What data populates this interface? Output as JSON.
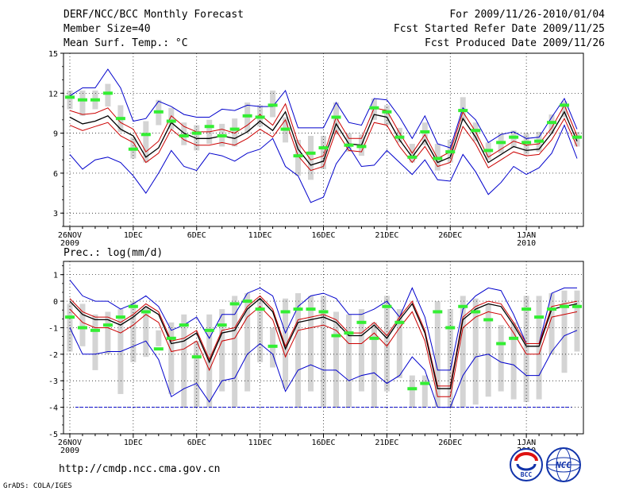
{
  "header": {
    "title": "DERF/NCC/BCC Monthly Forecast",
    "member_size": "Member Size=40",
    "variable": "Mean Surf. Temp.: °C",
    "period": "For 2009/11/26-2010/01/04",
    "started": "Fcst Started Refer Date 2009/11/25",
    "produced": "Fcst Produced Date 2009/11/26"
  },
  "footer": {
    "url": "http://cmdp.ncc.cma.gov.cn",
    "credit": "GrADS: COLA/IGES"
  },
  "logos": {
    "bcc": "BCC",
    "ncc": "NCC"
  },
  "colors": {
    "envelope": "#0000cc",
    "spread": "#cc0000",
    "mean": "#000000",
    "bar": "#d4d4d4",
    "obs": "#33ee33",
    "grid": "#000000"
  },
  "chart_data": [
    {
      "type": "line",
      "title": "Mean Surf. Temp.: °C",
      "x_tick_labels": [
        "26NOV",
        "1DEC",
        "6DEC",
        "11DEC",
        "16DEC",
        "21DEC",
        "26DEC",
        "1JAN"
      ],
      "x_tick_days": [
        1,
        6,
        11,
        16,
        21,
        26,
        31,
        37
      ],
      "year_labels": [
        {
          "label": "2009",
          "day": 1
        },
        {
          "label": "2010",
          "day": 37
        }
      ],
      "ylim": [
        2,
        15
      ],
      "yticks": [
        3,
        6,
        9,
        12,
        15
      ],
      "series": [
        {
          "name": "max",
          "color": "#0000cc",
          "values": [
            7.4,
            6.3,
            7.0,
            7.2,
            6.8,
            5.8,
            4.5,
            6.0,
            7.7,
            6.5,
            6.2,
            7.5,
            7.3,
            6.9,
            7.5,
            7.8,
            8.6,
            6.5,
            5.8,
            3.8,
            4.2,
            6.7,
            8.0,
            6.5,
            6.6,
            7.7,
            6.8,
            5.9,
            7.0,
            5.5,
            5.4,
            7.4,
            6.1,
            4.4,
            5.3,
            6.5,
            5.9,
            6.4,
            7.5,
            9.6,
            7.1
          ]
        },
        {
          "name": "mean",
          "color": "#000000",
          "values": [
            10.2,
            9.7,
            9.9,
            10.3,
            9.3,
            8.8,
            7.2,
            7.9,
            9.8,
            9.0,
            8.6,
            8.6,
            8.8,
            8.6,
            9.1,
            9.9,
            9.2,
            10.6,
            7.8,
            6.6,
            6.9,
            9.7,
            8.2,
            8.1,
            10.4,
            10.2,
            8.5,
            7.2,
            8.5,
            6.8,
            7.2,
            10.1,
            8.7,
            6.8,
            7.4,
            8.0,
            7.7,
            7.8,
            9.0,
            10.6,
            8.4
          ]
        },
        {
          "name": "spread-lower",
          "color": "#cc0000",
          "values": [
            9.6,
            9.2,
            9.5,
            9.8,
            8.8,
            8.3,
            6.8,
            7.5,
            9.3,
            8.5,
            8.1,
            8.1,
            8.3,
            8.1,
            8.6,
            9.3,
            8.7,
            10.0,
            7.3,
            6.2,
            6.5,
            9.2,
            7.7,
            7.6,
            9.8,
            9.6,
            8.0,
            6.8,
            8.0,
            6.5,
            6.8,
            9.5,
            8.2,
            6.4,
            7.0,
            7.6,
            7.3,
            7.4,
            8.5,
            10.1,
            8.0
          ]
        },
        {
          "name": "spread-upper",
          "color": "#cc0000",
          "values": [
            10.7,
            10.4,
            10.5,
            10.9,
            9.8,
            9.3,
            7.6,
            8.4,
            10.3,
            9.5,
            9.1,
            9.1,
            9.3,
            9.0,
            9.6,
            10.4,
            9.6,
            11.2,
            8.3,
            7.0,
            7.3,
            10.2,
            8.6,
            8.6,
            10.9,
            10.7,
            9.0,
            7.5,
            8.9,
            7.1,
            7.6,
            10.6,
            9.1,
            7.2,
            7.8,
            8.4,
            8.1,
            8.2,
            9.4,
            11.1,
            8.8
          ]
        },
        {
          "name": "min",
          "color": "#0000cc",
          "values": [
            11.8,
            12.4,
            12.4,
            13.8,
            12.4,
            9.9,
            10.1,
            11.4,
            11.0,
            10.4,
            10.2,
            10.2,
            10.8,
            10.7,
            11.1,
            11.0,
            11.0,
            12.2,
            9.4,
            9.4,
            9.4,
            11.3,
            9.8,
            9.6,
            11.6,
            11.5,
            10.2,
            8.6,
            10.3,
            8.2,
            7.9,
            10.9,
            10.0,
            8.3,
            8.9,
            9.1,
            8.6,
            8.7,
            10.2,
            11.6,
            9.3
          ]
        },
        {
          "name": "obs",
          "color": "#33ee33",
          "values": [
            11.7,
            11.5,
            11.5,
            12.0,
            10.1,
            7.8,
            8.9,
            10.6,
            9.9,
            8.8,
            9.0,
            9.5,
            8.8,
            9.3,
            10.3,
            10.2,
            11.1,
            9.3,
            7.3,
            7.5,
            7.9,
            10.2,
            8.1,
            8.0,
            10.9,
            10.6,
            8.7,
            7.2,
            9.1,
            7.1,
            7.6,
            10.7,
            9.2,
            7.7,
            8.3,
            8.7,
            8.3,
            8.4,
            9.8,
            11.1,
            8.7
          ]
        },
        {
          "name": "bars",
          "lows": [
            10.8,
            10.3,
            10.8,
            11.0,
            9.1,
            7.1,
            6.8,
            9.6,
            9.3,
            8.1,
            7.7,
            8.2,
            8.0,
            8.0,
            9.1,
            9.5,
            10.2,
            8.3,
            5.8,
            5.5,
            6.3,
            8.9,
            7.6,
            7.3,
            10.0,
            9.6,
            8.3,
            6.8,
            8.1,
            6.2,
            6.8,
            9.9,
            8.4,
            7.0,
            7.5,
            7.9,
            7.4,
            7.6,
            9.0,
            10.2,
            8.0
          ],
          "highs": [
            12.2,
            12.2,
            12.2,
            12.7,
            11.1,
            8.7,
            9.9,
            11.5,
            10.9,
            9.8,
            9.6,
            10.0,
            9.7,
            10.1,
            11.3,
            11.1,
            12.2,
            10.2,
            8.5,
            8.8,
            8.8,
            11.3,
            9.0,
            8.9,
            11.6,
            11.1,
            9.4,
            8.2,
            9.8,
            8.2,
            8.5,
            11.7,
            9.8,
            8.3,
            9.0,
            9.2,
            9.0,
            9.1,
            10.4,
            11.4,
            9.1
          ]
        }
      ]
    },
    {
      "type": "line",
      "title": "Prec.: log(mm/d)",
      "x_tick_labels": [
        "26NOV",
        "1DEC",
        "6DEC",
        "11DEC",
        "16DEC",
        "21DEC",
        "26DEC",
        "1JAN"
      ],
      "x_tick_days": [
        1,
        6,
        11,
        16,
        21,
        26,
        31,
        37
      ],
      "year_labels": [
        {
          "label": "2009",
          "day": 1
        },
        {
          "label": "2010",
          "day": 37
        }
      ],
      "ylim": [
        -5,
        1.5
      ],
      "yticks": [
        -5,
        -4,
        -3,
        -2,
        -1,
        0,
        1
      ],
      "baseline": -4,
      "series": [
        {
          "name": "max",
          "color": "#0000cc",
          "values": [
            0.8,
            0.2,
            0.0,
            0.0,
            -0.3,
            -0.1,
            0.2,
            -0.2,
            -1.1,
            -0.9,
            -0.6,
            -1.4,
            -0.5,
            -0.5,
            0.3,
            0.5,
            0.2,
            -1.2,
            -0.2,
            0.2,
            0.3,
            0.1,
            -0.5,
            -0.5,
            -0.3,
            0.0,
            -0.6,
            0.5,
            -0.6,
            -2.6,
            -2.6,
            -0.3,
            0.2,
            0.5,
            0.4,
            -0.5,
            -1.6,
            -1.6,
            0.3,
            0.5,
            0.5
          ]
        },
        {
          "name": "mean",
          "color": "#000000",
          "values": [
            0.0,
            -0.5,
            -0.7,
            -0.7,
            -0.9,
            -0.6,
            -0.2,
            -0.5,
            -1.6,
            -1.5,
            -1.2,
            -2.3,
            -1.2,
            -1.1,
            -0.3,
            0.1,
            -0.4,
            -1.8,
            -0.8,
            -0.7,
            -0.6,
            -0.8,
            -1.3,
            -1.3,
            -0.9,
            -1.4,
            -0.7,
            -0.1,
            -1.2,
            -3.3,
            -3.3,
            -0.7,
            -0.3,
            -0.1,
            -0.2,
            -0.9,
            -1.7,
            -1.7,
            -0.3,
            -0.2,
            -0.1
          ]
        },
        {
          "name": "spread-lower",
          "color": "#cc0000",
          "values": [
            -0.3,
            -0.8,
            -1.0,
            -1.0,
            -1.2,
            -0.9,
            -0.5,
            -0.8,
            -1.9,
            -1.8,
            -1.5,
            -2.6,
            -1.5,
            -1.4,
            -0.6,
            -0.2,
            -0.7,
            -2.1,
            -1.1,
            -1.0,
            -0.9,
            -1.1,
            -1.6,
            -1.6,
            -1.2,
            -1.7,
            -1.0,
            -0.4,
            -1.5,
            -3.6,
            -3.6,
            -1.0,
            -0.6,
            -0.4,
            -0.5,
            -1.2,
            -2.0,
            -2.0,
            -0.6,
            -0.5,
            -0.4
          ]
        },
        {
          "name": "spread-upper",
          "color": "#cc0000",
          "values": [
            0.1,
            -0.4,
            -0.6,
            -0.6,
            -0.8,
            -0.5,
            -0.1,
            -0.4,
            -1.5,
            -1.4,
            -1.1,
            -2.2,
            -1.1,
            -1.0,
            -0.2,
            0.2,
            -0.3,
            -1.7,
            -0.7,
            -0.6,
            -0.5,
            -0.7,
            -1.2,
            -1.2,
            -0.8,
            -1.3,
            -0.6,
            0.0,
            -1.1,
            -3.2,
            -3.2,
            -0.6,
            -0.2,
            0.0,
            -0.1,
            -0.8,
            -1.6,
            -1.6,
            -0.2,
            -0.1,
            0.0
          ]
        },
        {
          "name": "min",
          "color": "#0000cc",
          "values": [
            -1.0,
            -2.0,
            -2.0,
            -1.9,
            -1.9,
            -1.7,
            -1.5,
            -2.2,
            -3.6,
            -3.3,
            -3.1,
            -3.8,
            -3.0,
            -2.9,
            -2.0,
            -1.6,
            -2.0,
            -3.4,
            -2.6,
            -2.4,
            -2.6,
            -2.6,
            -3.0,
            -2.8,
            -2.7,
            -3.1,
            -2.8,
            -2.1,
            -2.6,
            -4.0,
            -4.0,
            -2.8,
            -2.1,
            -2.0,
            -2.3,
            -2.4,
            -2.8,
            -2.8,
            -1.9,
            -1.3,
            -1.1
          ]
        },
        {
          "name": "obs",
          "color": "#33ee33",
          "values": [
            -0.6,
            -1.0,
            -1.1,
            -0.9,
            -0.6,
            -0.2,
            -0.4,
            -1.8,
            -1.4,
            -0.9,
            -2.1,
            -1.1,
            -0.9,
            -0.1,
            0.0,
            -0.3,
            -1.7,
            -0.4,
            -0.3,
            -0.3,
            -0.4,
            -1.3,
            -1.2,
            -0.8,
            -1.4,
            -0.2,
            -0.8,
            -3.3,
            -3.1,
            -0.4,
            -1.0,
            -0.2,
            -0.4,
            -0.7,
            -1.6,
            -1.4,
            -0.3,
            -0.6,
            -0.3,
            -0.2,
            -0.2
          ]
        },
        {
          "name": "bars",
          "lows": [
            -1.9,
            -1.7,
            -2.6,
            -2.0,
            -3.5,
            -2.3,
            -2.1,
            -1.7,
            -3.5,
            -4.0,
            -4.0,
            -4.0,
            -3.4,
            -4.0,
            -3.4,
            -2.3,
            -2.5,
            -3.3,
            -4.0,
            -3.4,
            -4.0,
            -4.0,
            -4.0,
            -3.4,
            -4.0,
            -3.4,
            -2.9,
            -4.0,
            -4.0,
            -4.0,
            -4.0,
            -4.0,
            -3.9,
            -3.6,
            -3.4,
            -3.7,
            -3.8,
            -3.7,
            -2.0,
            -2.7,
            -1.9
          ],
          "highs": [
            -0.1,
            -0.1,
            -0.5,
            -0.4,
            -0.3,
            0.0,
            -0.2,
            -1.1,
            -0.8,
            -0.5,
            -1.5,
            -0.5,
            -0.3,
            0.2,
            0.3,
            0.1,
            -1.0,
            0.1,
            0.3,
            0.2,
            0.2,
            -0.4,
            -0.5,
            -0.3,
            -0.8,
            0.2,
            -0.3,
            -2.8,
            -2.8,
            0.0,
            -0.3,
            0.2,
            0.1,
            -0.1,
            -0.9,
            -0.8,
            0.2,
            0.2,
            0.3,
            0.4,
            0.4
          ]
        }
      ]
    }
  ]
}
